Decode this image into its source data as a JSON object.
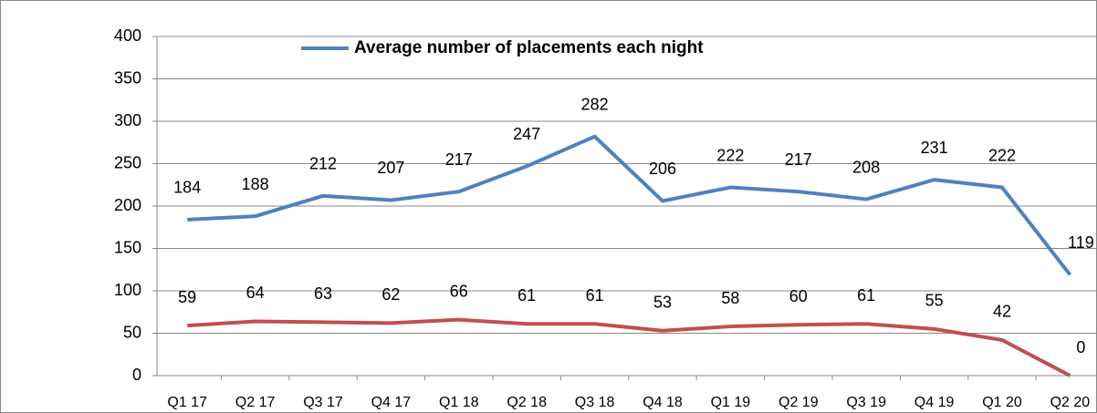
{
  "chart_data": {
    "type": "line",
    "categories": [
      "Q1 17",
      "Q2 17",
      "Q3 17",
      "Q4 17",
      "Q1 18",
      "Q2 18",
      "Q3 18",
      "Q4 18",
      "Q1 19",
      "Q2 19",
      "Q3 19",
      "Q4 19",
      "Q1 20",
      "Q2 20"
    ],
    "series": [
      {
        "name": "Average number of placements each night",
        "color": "#4f81bd",
        "values": [
          184,
          188,
          212,
          207,
          217,
          247,
          282,
          206,
          222,
          217,
          208,
          231,
          222,
          119
        ]
      },
      {
        "color": "#c0504d",
        "values": [
          59,
          64,
          63,
          62,
          66,
          61,
          61,
          53,
          58,
          60,
          61,
          55,
          42,
          0
        ]
      }
    ],
    "ylim": [
      0,
      400
    ],
    "yticks": [
      0,
      50,
      100,
      150,
      200,
      250,
      300,
      350,
      400
    ],
    "grid": true
  }
}
